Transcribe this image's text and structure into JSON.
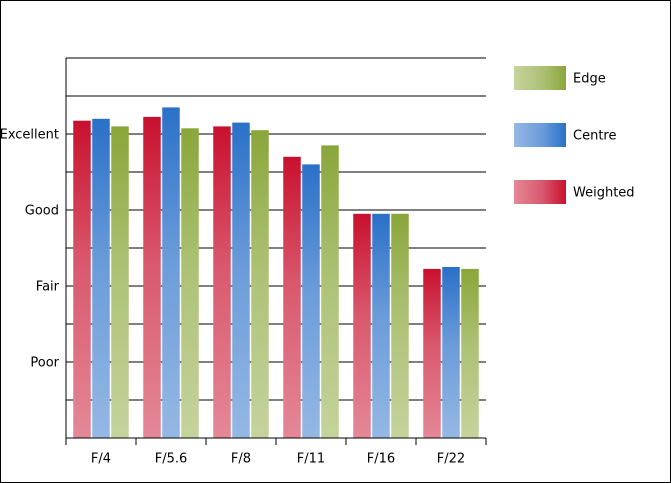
{
  "chart_data": {
    "type": "bar",
    "categories": [
      "F/4",
      "F/5.6",
      "F/8",
      "F/11",
      "F/16",
      "F/22"
    ],
    "series": [
      {
        "name": "Weighted",
        "color": "#c8102e",
        "values": [
          8.35,
          8.45,
          8.2,
          7.4,
          5.9,
          4.45
        ]
      },
      {
        "name": "Centre",
        "color": "#2a70c8",
        "values": [
          8.4,
          8.7,
          8.3,
          7.2,
          5.9,
          4.5
        ]
      },
      {
        "name": "Edge",
        "color": "#8aa63a",
        "values": [
          8.2,
          8.15,
          8.1,
          7.7,
          5.9,
          4.45
        ]
      }
    ],
    "ylim": [
      0,
      10
    ],
    "yticks": [
      {
        "value": 2,
        "label": "Poor"
      },
      {
        "value": 4,
        "label": "Fair"
      },
      {
        "value": 6,
        "label": "Good"
      },
      {
        "value": 8,
        "label": "Excellent"
      }
    ],
    "minor_yticks": [
      1,
      3,
      5,
      7,
      9,
      10
    ],
    "grid": true,
    "legend": "right"
  }
}
